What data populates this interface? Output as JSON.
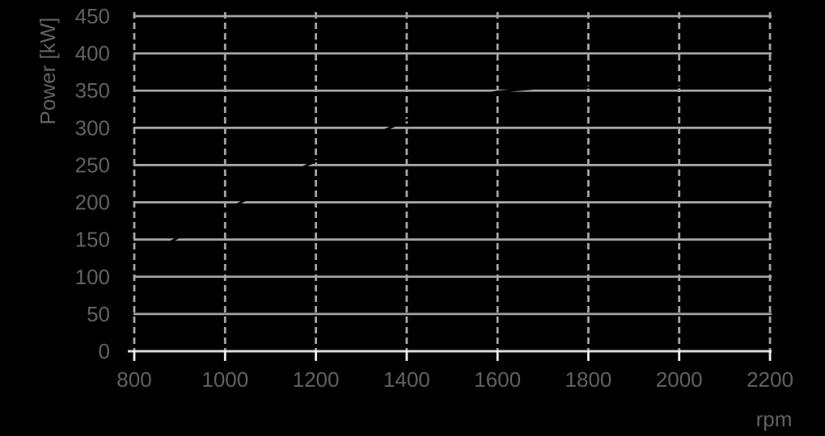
{
  "chart_data": {
    "type": "line",
    "title": "",
    "xlabel": "rpm",
    "ylabel": "Power [kW]",
    "xlim": [
      800,
      2200
    ],
    "ylim": [
      0,
      450
    ],
    "x_ticks": [
      800,
      1000,
      1200,
      1400,
      1600,
      1800,
      2000,
      2200
    ],
    "y_ticks": [
      0,
      50,
      100,
      150,
      200,
      250,
      300,
      350,
      400,
      450
    ],
    "grid": {
      "horizontal": "solid",
      "vertical": "dashed"
    },
    "legend": "none",
    "series": [
      {
        "name": "Power",
        "color": "#000000",
        "points": [
          [
            800,
            120
          ],
          [
            889,
            150
          ],
          [
            1035,
            200
          ],
          [
            1181,
            250
          ],
          [
            1300,
            283
          ],
          [
            1363,
            300
          ],
          [
            1500,
            338
          ],
          [
            1600,
            348.5
          ],
          [
            1700,
            354
          ],
          [
            2200,
            355
          ]
        ]
      }
    ]
  },
  "colors": {
    "background": "#000000",
    "gridline": "#a6a6a6",
    "axis_line": "#dcdcdc",
    "tick_mark": "#efefef",
    "tick_label": "#616161",
    "axis_title": "#616161",
    "series": "#000000"
  }
}
